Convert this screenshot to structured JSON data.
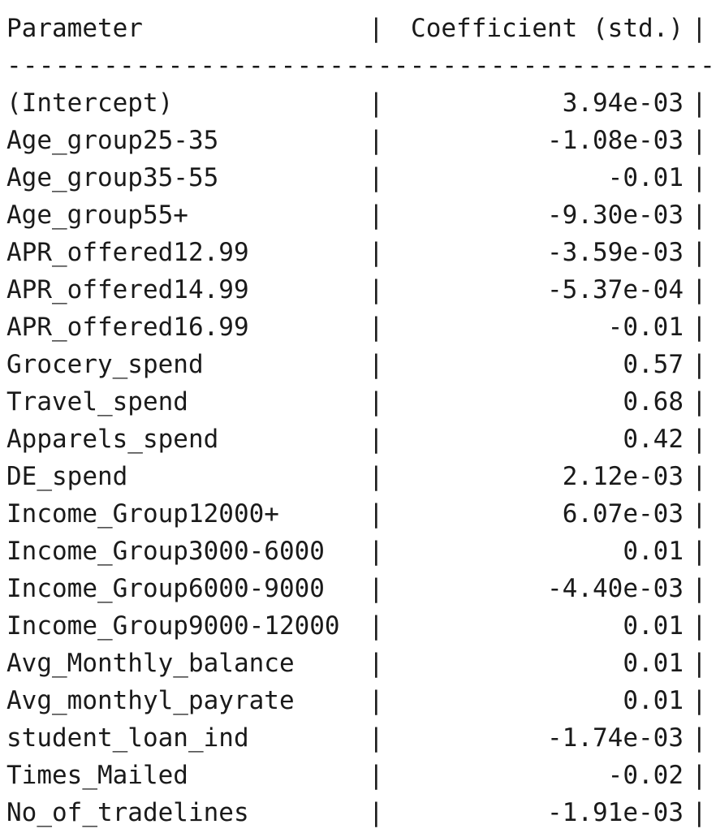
{
  "header": {
    "parameter": "Parameter",
    "coefficient": "Coefficient (std.)",
    "separator": "|"
  },
  "rule": "----------------------------------------------------",
  "rows": [
    {
      "parameter": "(Intercept)",
      "coefficient": "3.94e-03"
    },
    {
      "parameter": "Age_group25-35",
      "coefficient": "-1.08e-03"
    },
    {
      "parameter": "Age_group35-55",
      "coefficient": "-0.01"
    },
    {
      "parameter": "Age_group55+",
      "coefficient": "-9.30e-03"
    },
    {
      "parameter": "APR_offered12.99",
      "coefficient": "-3.59e-03"
    },
    {
      "parameter": "APR_offered14.99",
      "coefficient": "-5.37e-04"
    },
    {
      "parameter": "APR_offered16.99",
      "coefficient": "-0.01"
    },
    {
      "parameter": "Grocery_spend",
      "coefficient": "0.57"
    },
    {
      "parameter": "Travel_spend",
      "coefficient": "0.68"
    },
    {
      "parameter": "Apparels_spend",
      "coefficient": "0.42"
    },
    {
      "parameter": "DE_spend",
      "coefficient": "2.12e-03"
    },
    {
      "parameter": "Income_Group12000+",
      "coefficient": "6.07e-03"
    },
    {
      "parameter": "Income_Group3000-6000",
      "coefficient": "0.01"
    },
    {
      "parameter": "Income_Group6000-9000",
      "coefficient": "-4.40e-03"
    },
    {
      "parameter": "Income_Group9000-12000",
      "coefficient": "0.01"
    },
    {
      "parameter": "Avg_Monthly_balance",
      "coefficient": "0.01"
    },
    {
      "parameter": "Avg_monthyl_payrate",
      "coefficient": "0.01"
    },
    {
      "parameter": "student_loan_ind",
      "coefficient": "-1.74e-03"
    },
    {
      "parameter": "Times_Mailed",
      "coefficient": "-0.02"
    },
    {
      "parameter": "No_of_tradelines",
      "coefficient": "-1.91e-03"
    }
  ]
}
